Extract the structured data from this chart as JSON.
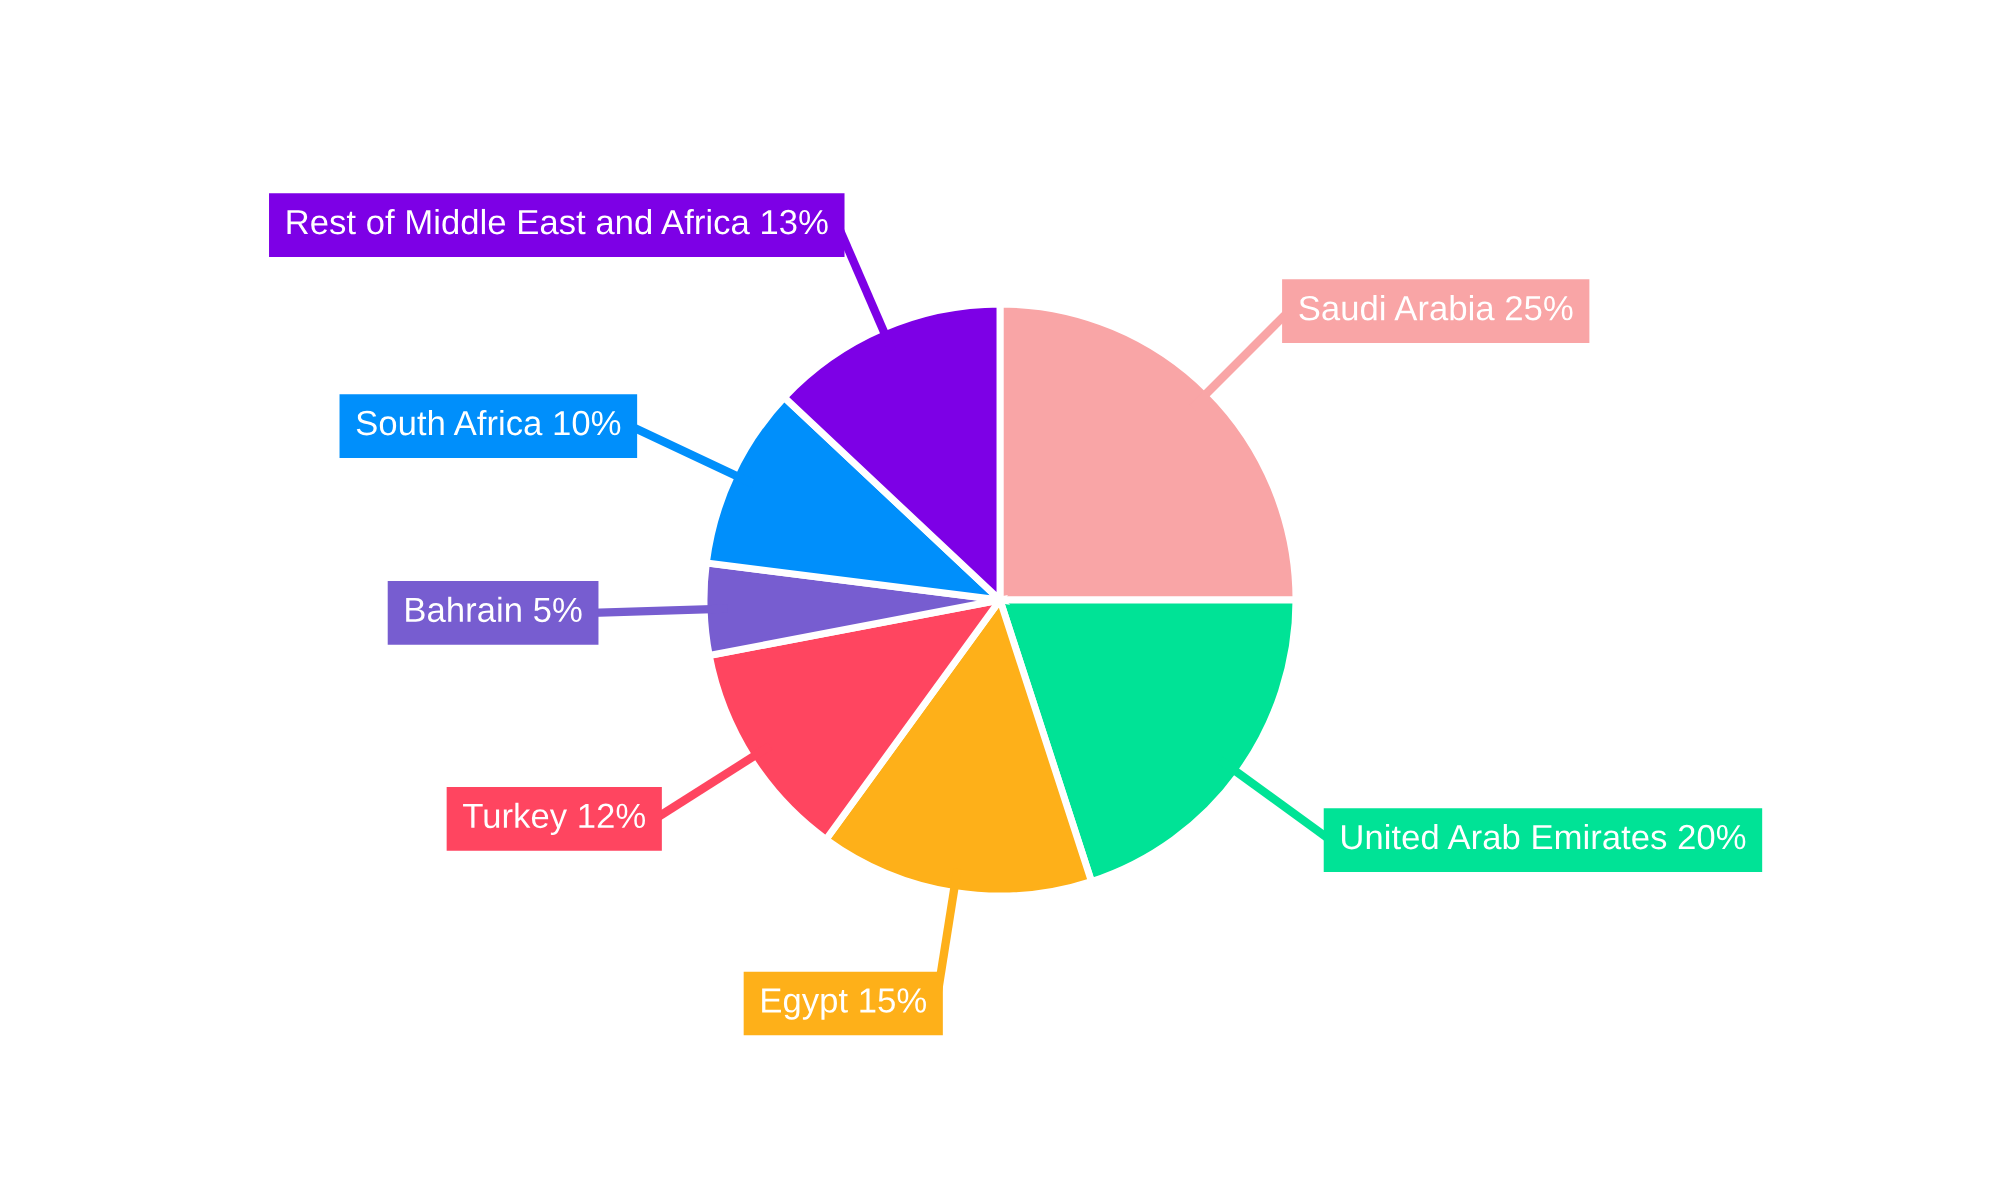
{
  "chart_data": {
    "type": "pie",
    "categories": [
      "Saudi Arabia",
      "United Arab Emirates",
      "Egypt",
      "Turkey",
      "Bahrain",
      "South Africa",
      "Rest of Middle East and Africa"
    ],
    "values": [
      25,
      20,
      15,
      12,
      5,
      10,
      13
    ],
    "value_labels": [
      "25%",
      "20%",
      "15%",
      "12%",
      "5%",
      "10%",
      "13%"
    ],
    "colors": [
      "#f9a5a6",
      "#00e396",
      "#feb019",
      "#ff4560",
      "#775dd0",
      "#008ffb",
      "#7d00e6"
    ],
    "legend": false
  }
}
